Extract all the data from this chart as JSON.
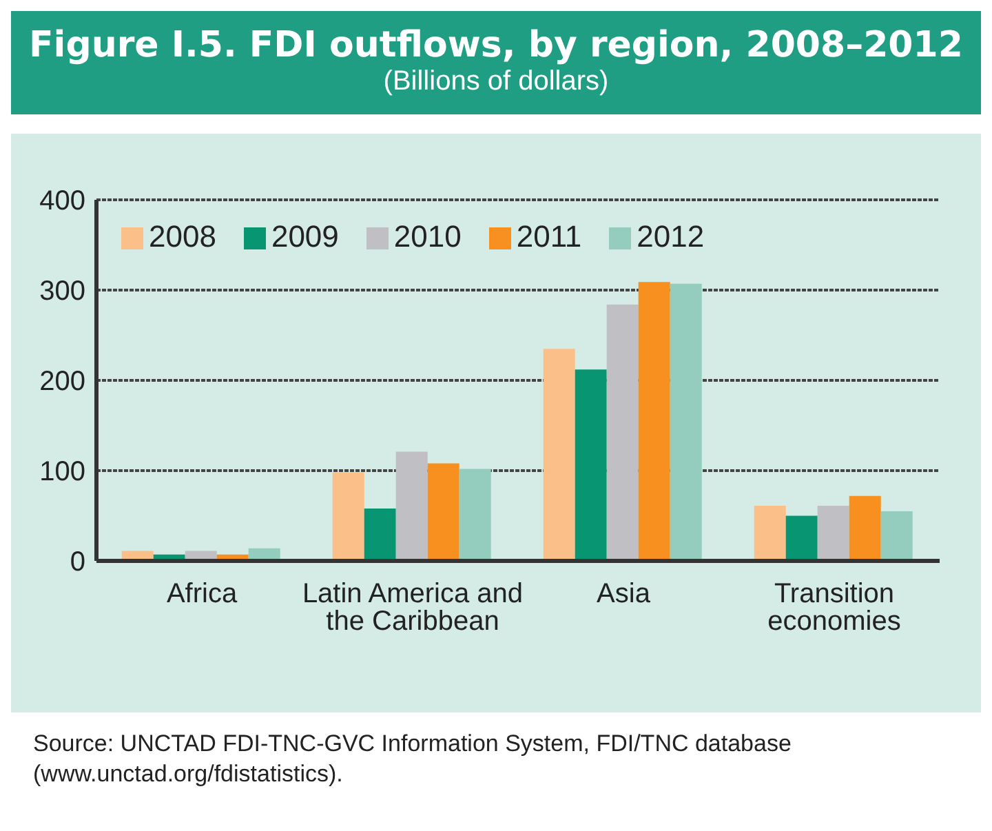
{
  "chart_data": {
    "type": "bar",
    "title": "Figure I.5. FDI outflows, by region, 2008–2012",
    "subtitle": "(Billions of dollars)",
    "categories": [
      "Africa",
      "Latin America and the Caribbean",
      "Asia",
      "Transition economies"
    ],
    "series": [
      {
        "name": "2008",
        "color": "#fbc08a",
        "values": [
          11,
          98,
          235,
          61
        ]
      },
      {
        "name": "2009",
        "color": "#089672",
        "values": [
          7,
          58,
          212,
          50
        ]
      },
      {
        "name": "2010",
        "color": "#bfbfc4",
        "values": [
          11,
          121,
          284,
          61
        ]
      },
      {
        "name": "2011",
        "color": "#f7901e",
        "values": [
          7,
          108,
          309,
          72
        ]
      },
      {
        "name": "2012",
        "color": "#94cdbd",
        "values": [
          14,
          102,
          307,
          55
        ]
      }
    ],
    "ylim": [
      0,
      400
    ],
    "yticks": [
      0,
      100,
      200,
      300,
      400
    ],
    "grid": "y",
    "legend": "top left",
    "annotations": [
      "Source: UNCTAD FDI-TNC-GVC Information System, FDI/TNC database (www.unctad.org/fdistatistics)."
    ]
  }
}
